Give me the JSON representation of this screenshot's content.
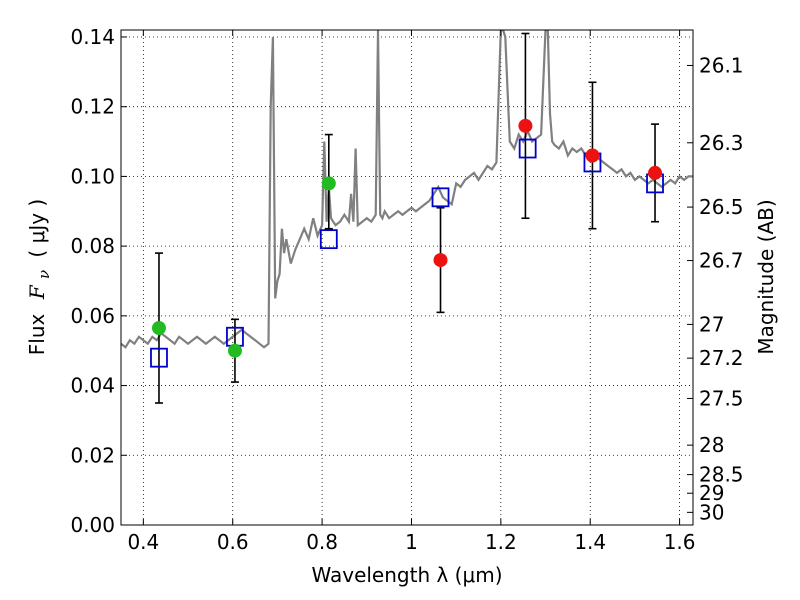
{
  "chart_data": {
    "type": "scatter",
    "title": "",
    "xlabel": "Wavelength  λ (μm)",
    "ylabel_prefix": "Flux",
    "ylabel_symbol": "F",
    "ylabel_subscript": "ν",
    "ylabel_unit": "( μJy )",
    "y2label": "Magnitude (AB)",
    "xlim": [
      0.35,
      1.63
    ],
    "ylim": [
      0.0,
      0.142
    ],
    "grid": true,
    "xticks": [
      0.4,
      0.6,
      0.8,
      1.0,
      1.2,
      1.4,
      1.6
    ],
    "xtick_labels": [
      "0.4",
      "0.6",
      "0.8",
      "1",
      "1.2",
      "1.4",
      "1.6"
    ],
    "yticks": [
      0.0,
      0.02,
      0.04,
      0.06,
      0.08,
      0.1,
      0.12,
      0.14
    ],
    "ytick_labels": [
      "0.00",
      "0.02",
      "0.04",
      "0.06",
      "0.08",
      "0.10",
      "0.12",
      "0.14"
    ],
    "y2ticks": [
      {
        "label": "26.1",
        "mag": 26.1
      },
      {
        "label": "26.3",
        "mag": 26.3
      },
      {
        "label": "26.5",
        "mag": 26.5
      },
      {
        "label": "26.7",
        "mag": 26.7
      },
      {
        "label": "27",
        "mag": 27.0
      },
      {
        "label": "27.2",
        "mag": 27.2
      },
      {
        "label": "27.5",
        "mag": 27.5
      },
      {
        "label": "28",
        "mag": 28.0
      },
      {
        "label": "28.5",
        "mag": 28.5
      },
      {
        "label": "29",
        "mag": 29.0
      },
      {
        "label": "30",
        "mag": 30.0
      }
    ],
    "colors": {
      "spectrum": "#808080",
      "green": "#22bb22",
      "red": "#ee1111",
      "model": "#0000cc",
      "errorbar": "#000000"
    },
    "spectrum": {
      "x": [
        0.35,
        0.36,
        0.37,
        0.38,
        0.39,
        0.4,
        0.41,
        0.42,
        0.43,
        0.44,
        0.45,
        0.46,
        0.47,
        0.48,
        0.49,
        0.5,
        0.51,
        0.52,
        0.53,
        0.54,
        0.55,
        0.56,
        0.57,
        0.58,
        0.59,
        0.6,
        0.61,
        0.62,
        0.63,
        0.64,
        0.65,
        0.66,
        0.67,
        0.68,
        0.685,
        0.69,
        0.695,
        0.7,
        0.705,
        0.71,
        0.715,
        0.72,
        0.73,
        0.74,
        0.75,
        0.76,
        0.77,
        0.78,
        0.79,
        0.8,
        0.805,
        0.81,
        0.815,
        0.82,
        0.83,
        0.84,
        0.85,
        0.86,
        0.865,
        0.87,
        0.875,
        0.88,
        0.89,
        0.9,
        0.91,
        0.92,
        0.925,
        0.93,
        0.935,
        0.94,
        0.95,
        0.96,
        0.97,
        0.98,
        0.99,
        1.0,
        1.01,
        1.02,
        1.03,
        1.04,
        1.05,
        1.06,
        1.07,
        1.08,
        1.09,
        1.1,
        1.11,
        1.12,
        1.13,
        1.14,
        1.15,
        1.16,
        1.17,
        1.18,
        1.19,
        1.2,
        1.205,
        1.21,
        1.215,
        1.22,
        1.23,
        1.24,
        1.25,
        1.26,
        1.27,
        1.28,
        1.29,
        1.3,
        1.305,
        1.31,
        1.315,
        1.32,
        1.33,
        1.34,
        1.35,
        1.36,
        1.37,
        1.38,
        1.39,
        1.4,
        1.41,
        1.42,
        1.43,
        1.44,
        1.45,
        1.46,
        1.47,
        1.48,
        1.49,
        1.5,
        1.51,
        1.52,
        1.53,
        1.54,
        1.55,
        1.56,
        1.57,
        1.58,
        1.59,
        1.6,
        1.61,
        1.62,
        1.63
      ],
      "y": [
        0.052,
        0.051,
        0.053,
        0.052,
        0.054,
        0.053,
        0.052,
        0.054,
        0.053,
        0.055,
        0.054,
        0.053,
        0.052,
        0.054,
        0.053,
        0.052,
        0.053,
        0.054,
        0.053,
        0.052,
        0.053,
        0.054,
        0.053,
        0.052,
        0.053,
        0.054,
        0.055,
        0.056,
        0.055,
        0.054,
        0.053,
        0.052,
        0.051,
        0.052,
        0.12,
        0.14,
        0.065,
        0.07,
        0.072,
        0.085,
        0.078,
        0.082,
        0.075,
        0.079,
        0.082,
        0.085,
        0.082,
        0.088,
        0.083,
        0.086,
        0.11,
        0.087,
        0.097,
        0.088,
        0.086,
        0.087,
        0.089,
        0.087,
        0.095,
        0.087,
        0.108,
        0.086,
        0.087,
        0.088,
        0.087,
        0.089,
        0.142,
        0.089,
        0.088,
        0.09,
        0.088,
        0.089,
        0.09,
        0.089,
        0.09,
        0.091,
        0.09,
        0.091,
        0.092,
        0.093,
        0.095,
        0.097,
        0.094,
        0.093,
        0.092,
        0.098,
        0.097,
        0.099,
        0.1,
        0.101,
        0.099,
        0.101,
        0.103,
        0.102,
        0.104,
        0.142,
        0.142,
        0.14,
        0.125,
        0.11,
        0.108,
        0.112,
        0.11,
        0.113,
        0.11,
        0.111,
        0.112,
        0.142,
        0.142,
        0.118,
        0.11,
        0.109,
        0.108,
        0.11,
        0.106,
        0.108,
        0.107,
        0.108,
        0.106,
        0.107,
        0.106,
        0.105,
        0.104,
        0.103,
        0.102,
        0.101,
        0.102,
        0.1,
        0.101,
        0.099,
        0.1,
        0.099,
        0.098,
        0.099,
        0.098,
        0.097,
        0.098,
        0.099,
        0.098,
        0.1,
        0.099,
        0.1,
        0.1
      ]
    },
    "green_points": [
      {
        "x": 0.435,
        "y": 0.0565,
        "ylow": 0.035,
        "yhigh": 0.078
      },
      {
        "x": 0.605,
        "y": 0.05,
        "ylow": 0.041,
        "yhigh": 0.059
      },
      {
        "x": 0.815,
        "y": 0.098,
        "ylow": 0.085,
        "yhigh": 0.112
      }
    ],
    "red_points": [
      {
        "x": 1.065,
        "y": 0.076,
        "ylow": 0.061,
        "yhigh": 0.091
      },
      {
        "x": 1.255,
        "y": 0.1145,
        "ylow": 0.088,
        "yhigh": 0.141
      },
      {
        "x": 1.405,
        "y": 0.106,
        "ylow": 0.085,
        "yhigh": 0.127
      },
      {
        "x": 1.545,
        "y": 0.101,
        "ylow": 0.087,
        "yhigh": 0.115
      }
    ],
    "model_points": [
      {
        "x": 0.435,
        "y": 0.048
      },
      {
        "x": 0.605,
        "y": 0.054
      },
      {
        "x": 0.815,
        "y": 0.082
      },
      {
        "x": 1.065,
        "y": 0.094
      },
      {
        "x": 1.26,
        "y": 0.108
      },
      {
        "x": 1.405,
        "y": 0.104
      },
      {
        "x": 1.545,
        "y": 0.098
      }
    ]
  }
}
